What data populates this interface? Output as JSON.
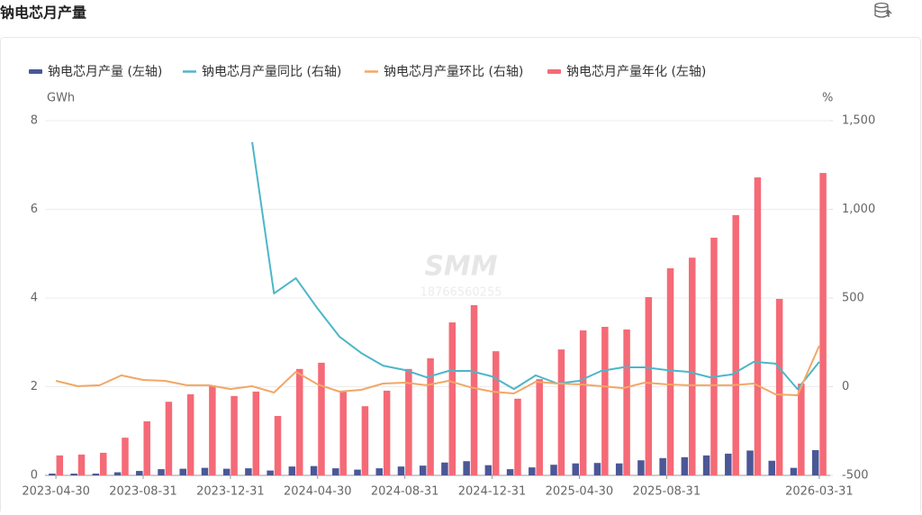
{
  "chart_data": {
    "type": "bar",
    "title": "钠电芯月产量",
    "y_unit": "GWh",
    "y2_unit": "%",
    "watermark": [
      "SMM",
      "18766560255"
    ],
    "categories": [
      "2023-04-30",
      null,
      null,
      null,
      "2023-08-31",
      null,
      null,
      null,
      "2023-12-31",
      null,
      null,
      null,
      "2024-04-30",
      null,
      null,
      null,
      "2024-08-31",
      null,
      null,
      null,
      "2024-12-31",
      null,
      null,
      null,
      "2025-04-30",
      null,
      null,
      null,
      "2025-08-31",
      null,
      null,
      null,
      null,
      null,
      null,
      "2026-03-31"
    ],
    "series": [
      {
        "name": "钠电芯月产量 (左轴)",
        "type": "bar",
        "axis": "y",
        "color": "#4b5796",
        "values": [
          0.04,
          0.04,
          0.04,
          0.07,
          0.1,
          0.14,
          0.15,
          0.17,
          0.15,
          0.16,
          0.11,
          0.2,
          0.21,
          0.16,
          0.13,
          0.16,
          0.2,
          0.22,
          0.29,
          0.32,
          0.23,
          0.14,
          0.18,
          0.24,
          0.27,
          0.28,
          0.27,
          0.34,
          0.39,
          0.41,
          0.45,
          0.49,
          0.56,
          0.33,
          0.17,
          0.57
        ]
      },
      {
        "name": "钠电芯月产量同比 (右轴)",
        "type": "line",
        "axis": "y2",
        "color": "#4db6c9",
        "values": [
          null,
          null,
          null,
          null,
          null,
          null,
          null,
          null,
          null,
          1379,
          526,
          612,
          440,
          282,
          190,
          119,
          94,
          53,
          89,
          89,
          58,
          -13,
          64,
          18,
          33,
          89,
          109,
          109,
          94,
          84,
          53,
          69,
          140,
          130,
          -13,
          140
        ]
      },
      {
        "name": "钠电芯月产量环比 (右轴)",
        "type": "line",
        "axis": "y2",
        "color": "#f2a766",
        "values": [
          33,
          3,
          8,
          64,
          38,
          33,
          8,
          8,
          -13,
          3,
          -33,
          84,
          13,
          -28,
          -18,
          18,
          23,
          8,
          33,
          -3,
          -28,
          -38,
          28,
          18,
          13,
          3,
          -8,
          23,
          13,
          8,
          8,
          8,
          18,
          -43,
          -48,
          231
        ]
      },
      {
        "name": "钠电芯月产量年化 (左轴)",
        "type": "bar",
        "axis": "y",
        "color": "#f56a77",
        "values": [
          0.45,
          0.47,
          0.51,
          0.85,
          1.22,
          1.66,
          1.83,
          2.03,
          1.79,
          1.89,
          1.34,
          2.4,
          2.54,
          1.91,
          1.56,
          1.91,
          2.4,
          2.64,
          3.45,
          3.84,
          2.8,
          1.73,
          2.17,
          2.84,
          3.27,
          3.35,
          3.29,
          4.02,
          4.67,
          4.91,
          5.36,
          5.87,
          6.72,
          3.98,
          2.07,
          6.82
        ]
      }
    ],
    "ylim": [
      0,
      8
    ],
    "yticks": [
      0,
      2,
      4,
      6,
      8
    ],
    "y2lim": [
      -500,
      1500
    ],
    "y2ticks": [
      {
        "value": -500,
        "label": "-500"
      },
      0,
      500,
      {
        "value": 1000,
        "label": "1,000"
      },
      {
        "value": 1500,
        "label": "1,500"
      }
    ],
    "grid": true,
    "legend": "top"
  }
}
